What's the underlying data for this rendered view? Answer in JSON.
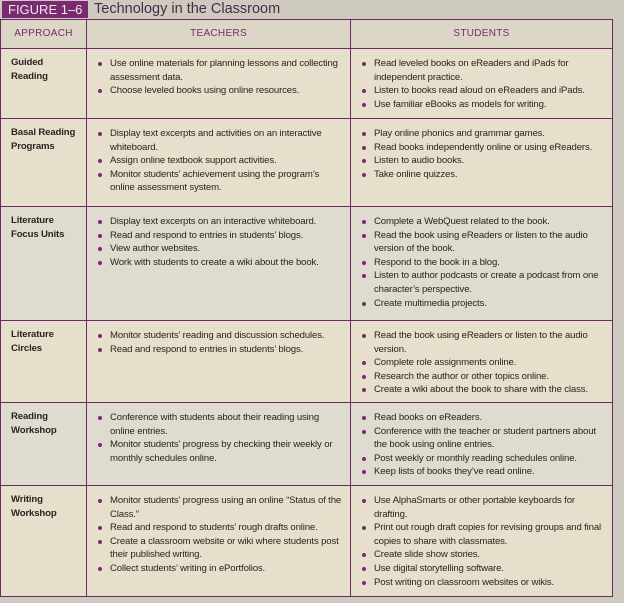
{
  "figure": {
    "label": "FIGURE 1–6",
    "title": "Technology in the Classroom"
  },
  "columns": [
    "APPROACH",
    "TEACHERS",
    "STUDENTS"
  ],
  "rows": [
    {
      "approach": "Guided Reading",
      "teachers": [
        "Use online materials for planning lessons and collecting assessment data.",
        "Choose leveled books using online resources."
      ],
      "students": [
        "Read leveled books on eReaders and iPads for independent practice.",
        "Listen to books read aloud on eReaders and iPads.",
        "Use familiar eBooks as models for writing."
      ]
    },
    {
      "approach": "Basal Reading Programs",
      "teachers": [
        "Display text excerpts and activities on an interactive whiteboard.",
        "Assign online textbook support activities.",
        "Monitor students’ achievement using the program’s online assessment system."
      ],
      "students": [
        "Play online phonics and grammar games.",
        "Read books independently online or using eReaders.",
        "Listen to audio books.",
        "Take online quizzes."
      ]
    },
    {
      "approach": "Literature Focus Units",
      "teachers": [
        "Display text excerpts on an interactive whiteboard.",
        "Read and respond to entries in students’ blogs.",
        "View author websites.",
        "Work with students to create a wiki about the book."
      ],
      "students": [
        "Complete a WebQuest related to the book.",
        "Read the book using eReaders or listen to the audio version of the book.",
        "Respond to the book in a blog.",
        "Listen to author podcasts or create a podcast from one character’s perspective.",
        "Create multimedia projects."
      ]
    },
    {
      "approach": "Literature Circles",
      "teachers": [
        "Monitor students’ reading and discussion schedules.",
        "Read and respond to entries in students’ blogs."
      ],
      "students": [
        "Read the book using eReaders or listen to the audio version.",
        "Complete role assignments online.",
        "Research the author or other topics online.",
        "Create a wiki about the book to share with the class."
      ]
    },
    {
      "approach": "Reading Workshop",
      "teachers": [
        "Conference with students about their reading using online entries.",
        "Monitor students’ progress by checking their weekly or monthly schedules online."
      ],
      "students": [
        "Read books on eReaders.",
        "Conference with the teacher or student partners about the book using online entries.",
        "Post weekly or monthly reading schedules online.",
        "Keep lists of books they’ve read online."
      ]
    },
    {
      "approach": "Writing Workshop",
      "teachers": [
        "Monitor students’ progress using an online “Status of the Class.”",
        "Read and respond to students’ rough drafts online.",
        "Create a classroom website or wiki where students post their published writing.",
        "Collect students’ writing in ePortfolios."
      ],
      "students": [
        "Use AlphaSmarts or other portable keyboards for drafting.",
        "Print out rough draft copies for revising groups and final copies to share with classmates.",
        "Create slide show stories.",
        "Use digital storytelling software.",
        "Post writing on classroom websites or wikis."
      ]
    }
  ]
}
